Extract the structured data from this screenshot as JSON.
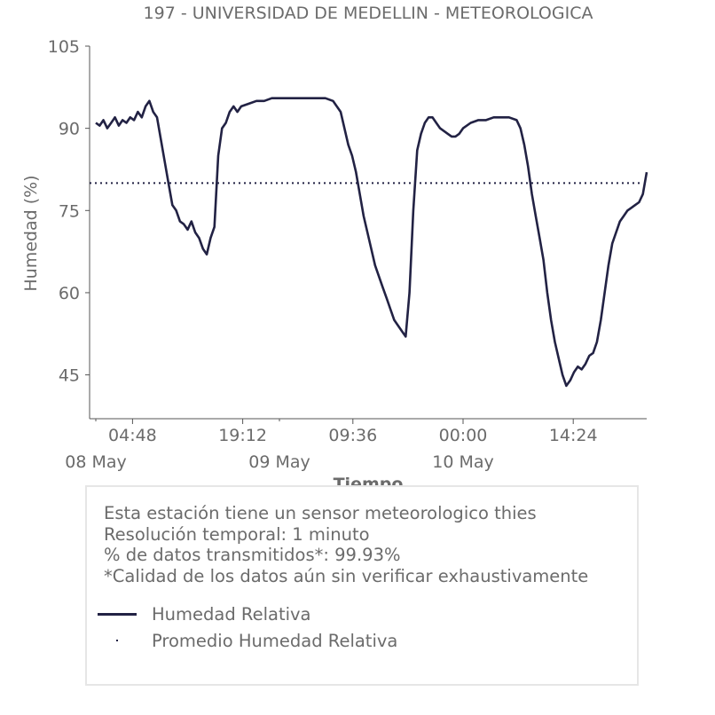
{
  "chart_data": {
    "type": "line",
    "title": "197 - UNIVERSIDAD DE MEDELLIN - METEOROLOGICA",
    "xlabel": "Tiempo",
    "ylabel": "Humedad (%)",
    "ylim": [
      37,
      105
    ],
    "yticks": [
      45,
      60,
      75,
      90,
      105
    ],
    "xlim_hours": [
      0,
      72
    ],
    "xticks": [
      {
        "hour": 4.8,
        "label": "04:48"
      },
      {
        "hour": 19.2,
        "label": "19:12"
      },
      {
        "hour": 33.6,
        "label": "09:36"
      },
      {
        "hour": 48.0,
        "label": "00:00"
      },
      {
        "hour": 62.4,
        "label": "14:24"
      }
    ],
    "date_labels": [
      {
        "hour": 0,
        "label": "08 May"
      },
      {
        "hour": 24,
        "label": "09 May"
      },
      {
        "hour": 48,
        "label": "10 May"
      }
    ],
    "average": 80,
    "grid": false,
    "series": [
      {
        "name": "Humedad Relativa",
        "color": "#222244",
        "x_hours": [
          0,
          0.5,
          1,
          1.5,
          2,
          2.5,
          3,
          3.5,
          4,
          4.5,
          5,
          5.5,
          6,
          6.5,
          7,
          7.5,
          8,
          8.5,
          9,
          9.5,
          10,
          10.5,
          11,
          11.5,
          12,
          12.5,
          13,
          13.5,
          14,
          14.5,
          15,
          15.5,
          16,
          16.5,
          17,
          17.5,
          18,
          18.5,
          19,
          20,
          21,
          22,
          23,
          24,
          25,
          26,
          27,
          28,
          29,
          30,
          31,
          32,
          33,
          33.5,
          34,
          34.5,
          35,
          35.5,
          36,
          36.5,
          37,
          37.5,
          38,
          38.5,
          39,
          39.5,
          40,
          40.5,
          41,
          41.5,
          42,
          42.5,
          43,
          43.5,
          44,
          44.5,
          45,
          45.5,
          46,
          46.5,
          47,
          47.5,
          48,
          49,
          50,
          51,
          52,
          53,
          54,
          55,
          55.5,
          56,
          56.5,
          57,
          57.5,
          58,
          58.5,
          59,
          59.5,
          60,
          60.5,
          61,
          61.5,
          62,
          62.5,
          63,
          63.5,
          64,
          64.5,
          65,
          65.5,
          66,
          66.5,
          67,
          67.5,
          68,
          68.5,
          69,
          69.5,
          70,
          70.5,
          71,
          71.5,
          72
        ],
        "values": [
          91,
          90.5,
          91.5,
          90,
          91,
          92,
          90.5,
          91.5,
          91,
          92,
          91.5,
          93,
          92,
          94,
          95,
          93,
          92,
          88,
          84,
          80,
          76,
          75,
          73,
          72.5,
          71.5,
          73,
          71,
          70,
          68,
          67,
          70,
          72,
          85,
          90,
          91,
          93,
          94,
          93,
          94,
          94.5,
          95,
          95,
          95.5,
          95.5,
          95.5,
          95.5,
          95.5,
          95.5,
          95.5,
          95.5,
          95,
          93,
          87,
          85,
          82,
          78,
          74,
          71,
          68,
          65,
          63,
          61,
          59,
          57,
          55,
          54,
          53,
          52,
          60,
          75,
          86,
          89,
          91,
          92,
          92,
          91,
          90,
          89.5,
          89,
          88.5,
          88.5,
          89,
          90,
          91,
          91.5,
          91.5,
          92,
          92,
          92,
          91.5,
          90,
          87,
          83,
          78,
          74,
          70,
          66,
          60,
          55,
          51,
          48,
          45,
          43,
          44,
          45.5,
          46.5,
          46,
          47,
          48.5,
          49,
          51,
          55,
          60,
          65,
          69,
          71,
          73,
          74,
          75,
          75.5,
          76,
          76.5,
          78,
          82
        ]
      },
      {
        "name": "Promedio Humedad Relativa",
        "color": "#222244",
        "style": "dotted"
      }
    ]
  },
  "info": {
    "lines": [
      "Esta estación tiene un sensor meteorologico thies",
      "Resolución temporal: 1 minuto",
      "% de datos transmitidos*: 99.93%",
      "*Calidad de los datos aún sin verificar exhaustivamente"
    ]
  },
  "legend": {
    "humedad": "Humedad Relativa",
    "promedio": "Promedio Humedad Relativa"
  }
}
